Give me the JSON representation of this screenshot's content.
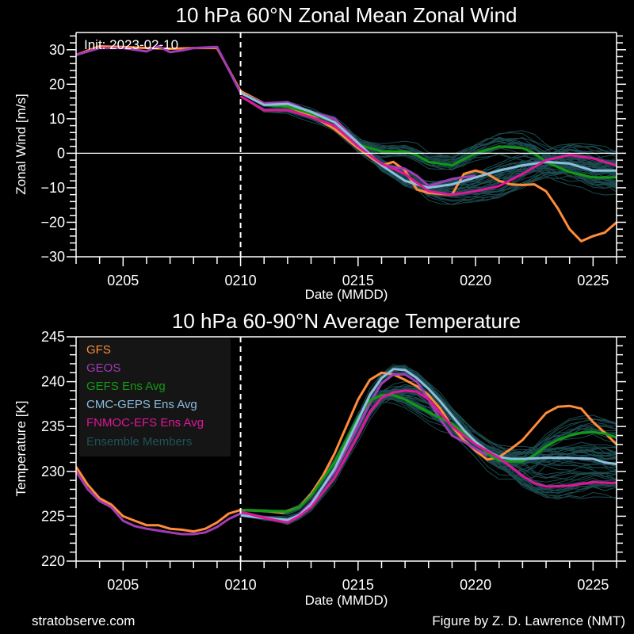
{
  "footer": {
    "left": "stratobserve.com",
    "right": "Figure by Z. D. Lawrence (NMT)"
  },
  "colors": {
    "GFS": "#ff8c3a",
    "GEOS": "#a23cb4",
    "GEFS": "#129b12",
    "CMC": "#8cbede",
    "FNMOC": "#e0169a",
    "Members": "#1c4a4e"
  },
  "chart_data": [
    {
      "type": "line",
      "title": "10 hPa  60°N   Zonal Mean Zonal Wind",
      "annotation": "Init: 2023-02-10",
      "xlabel": "Date (MMDD)",
      "ylabel": "Zonal  Wind   [m/s]",
      "xlim": [
        3,
        26
      ],
      "ylim": [
        -30,
        35
      ],
      "xticks": [
        5,
        10,
        15,
        20,
        25
      ],
      "xtick_labels": [
        "0205",
        "0210",
        "0215",
        "0220",
        "0225"
      ],
      "yticks": [
        30,
        20,
        10,
        0,
        -10,
        -20,
        -30
      ],
      "ytick_labels": [
        "30",
        "20",
        "10",
        "0",
        "−10",
        "−20",
        "−30"
      ],
      "init_day": 10,
      "zero_line": 0,
      "series": [
        {
          "name": "GFS",
          "x": [
            3,
            4,
            5,
            6,
            7,
            8,
            9,
            10,
            11,
            12,
            13,
            14,
            15,
            16,
            16.5,
            17,
            17.5,
            18,
            19,
            19.5,
            20,
            20.5,
            21,
            21.5,
            22,
            22.5,
            23,
            23.5,
            24,
            24.5,
            25,
            25.5,
            26
          ],
          "values": [
            28.5,
            31,
            30.8,
            30.5,
            30.3,
            30.5,
            30.5,
            18,
            14.5,
            13.5,
            11,
            7,
            1.5,
            -3.5,
            -2.5,
            -5,
            -10.5,
            -11.5,
            -12,
            -6,
            -5,
            -6,
            -8,
            -9,
            -9.2,
            -9,
            -11,
            -16,
            -22,
            -25.5,
            -24,
            -23,
            -20
          ]
        },
        {
          "name": "GEOS",
          "x": [
            3,
            4,
            5,
            6,
            6.5,
            7,
            7.5,
            8,
            9,
            10,
            11,
            12,
            13,
            14,
            15,
            16,
            17,
            17.5,
            18,
            19,
            20
          ],
          "values": [
            28.5,
            30.5,
            30.5,
            29.5,
            31,
            29.3,
            29.8,
            30.5,
            30.8,
            17.5,
            14.5,
            14.8,
            12,
            10,
            3,
            -3.5,
            -4.5,
            -6.5,
            -9.5,
            -7.5,
            -6.5
          ]
        },
        {
          "name": "GEFS Ens Avg",
          "x": [
            10,
            11,
            12,
            13,
            14,
            15,
            16,
            17,
            17.5,
            18,
            19,
            20,
            21,
            22,
            22.5,
            23,
            24,
            25,
            26
          ],
          "values": [
            17.5,
            14,
            13.5,
            11.5,
            9,
            2.5,
            0.5,
            0.5,
            -0.5,
            -2.5,
            -3.5,
            0,
            2,
            1.5,
            0,
            -2.5,
            -5.5,
            -7,
            -7
          ]
        },
        {
          "name": "CMC-GEPS Ens Avg",
          "x": [
            10,
            11,
            12,
            13,
            14,
            15,
            16,
            17,
            18,
            19,
            20,
            21,
            22,
            23,
            24,
            25,
            26
          ],
          "values": [
            17.5,
            14,
            14.3,
            12,
            9,
            3,
            -3.5,
            -8,
            -10,
            -9,
            -7,
            -5,
            -3.5,
            -2.5,
            -3,
            -5,
            -5
          ]
        },
        {
          "name": "FNMOC-EFS Ens Avg",
          "x": [
            10,
            11,
            12,
            13,
            14,
            15,
            16,
            17,
            18,
            19,
            20,
            21,
            22,
            23,
            24,
            25,
            26
          ],
          "values": [
            16.5,
            12.5,
            12.5,
            10.5,
            8,
            2,
            -3,
            -6,
            -11,
            -12,
            -11,
            -9.5,
            -6,
            -2,
            -0.5,
            -1.5,
            -3.5
          ]
        }
      ]
    },
    {
      "type": "line",
      "title": "10 hPa  60-90°N Average Temperature",
      "xlabel": "Date (MMDD)",
      "ylabel": "Temperature  [K]",
      "xlim": [
        3,
        26
      ],
      "ylim": [
        220,
        245
      ],
      "xticks": [
        5,
        10,
        15,
        20,
        25
      ],
      "xtick_labels": [
        "0205",
        "0210",
        "0215",
        "0220",
        "0225"
      ],
      "yticks": [
        245,
        240,
        235,
        230,
        225,
        220
      ],
      "ytick_labels": [
        "245",
        "240",
        "235",
        "230",
        "225",
        "220"
      ],
      "init_day": 10,
      "legend": {
        "position": "top-left",
        "entries": [
          "GFS",
          "GEOS",
          "GEFS Ens Avg",
          "CMC-GEPS Ens Avg",
          "FNMOC-EFS Ens Avg",
          "Ensemble Members"
        ]
      },
      "series": [
        {
          "name": "GFS",
          "x": [
            3,
            3.5,
            4,
            4.5,
            5,
            5.5,
            6,
            6.5,
            7,
            7.5,
            8,
            8.5,
            9,
            9.5,
            10,
            11,
            11.8,
            12.5,
            13,
            13.5,
            14,
            14.5,
            15,
            15.5,
            16,
            16.5,
            17,
            17.5,
            18,
            18.5,
            19,
            19.5,
            20,
            20.5,
            21,
            21.5,
            22,
            22.5,
            23,
            23.5,
            24,
            24.5,
            25,
            25.5,
            26
          ],
          "values": [
            230.5,
            228.5,
            227,
            226.3,
            225,
            224.5,
            224,
            224,
            223.6,
            223.5,
            223.3,
            223.6,
            224.3,
            225.3,
            225.7,
            225.6,
            225.4,
            226,
            227.5,
            229.5,
            232,
            235,
            238,
            240.2,
            241,
            240.8,
            240.2,
            239.5,
            238.5,
            237,
            235,
            233.5,
            232.3,
            231.3,
            231.6,
            232.5,
            233.5,
            235,
            236.5,
            237.2,
            237.3,
            237,
            235.5,
            234.3,
            233
          ]
        },
        {
          "name": "GEOS",
          "x": [
            3,
            3.5,
            4,
            4.5,
            5,
            5.5,
            6,
            6.5,
            7,
            7.5,
            8,
            8.5,
            9,
            9.5,
            10,
            10.5,
            11,
            12,
            12.5,
            13,
            14,
            15,
            15.5,
            16,
            16.5,
            17,
            17.5,
            18,
            18.5,
            19,
            19.5,
            20,
            20.5
          ],
          "values": [
            230,
            228,
            226.7,
            226,
            224.5,
            223.9,
            223.6,
            223.4,
            223.2,
            223,
            223,
            223.2,
            223.8,
            224.7,
            225.3,
            225.1,
            224.9,
            224.5,
            225.2,
            226.5,
            230,
            235,
            237.6,
            239.8,
            240.8,
            240.8,
            240,
            238,
            235.8,
            234,
            233.3,
            232.5,
            231.8
          ]
        },
        {
          "name": "GEFS Ens Avg",
          "x": [
            10,
            11,
            12,
            12.5,
            13,
            14,
            15,
            15.5,
            16,
            16.5,
            17,
            17.5,
            18,
            19,
            20,
            20.5,
            21,
            21.5,
            22,
            22.5,
            23,
            23.5,
            24,
            24.5,
            25,
            25.5,
            26
          ],
          "values": [
            225.7,
            225.6,
            225.5,
            226,
            227.3,
            231,
            236,
            237.9,
            238.5,
            238.5,
            238,
            237.3,
            236.6,
            235.3,
            233.3,
            232,
            231.2,
            231.1,
            231.1,
            231.8,
            232.8,
            233.5,
            234,
            234.3,
            234.4,
            234.2,
            233.8
          ]
        },
        {
          "name": "CMC-GEPS Ens Avg",
          "x": [
            10,
            11,
            12,
            12.5,
            13,
            14,
            15,
            15.5,
            16,
            16.5,
            17,
            17.5,
            18,
            18.5,
            19,
            19.5,
            20,
            20.5,
            21,
            21.5,
            22,
            23,
            24,
            25,
            25.5,
            26
          ],
          "values": [
            225.1,
            224.8,
            224.6,
            225.1,
            226.3,
            230.3,
            235.7,
            238.5,
            240.4,
            241.4,
            241.3,
            240.4,
            239.2,
            237.8,
            236.2,
            234.6,
            233.3,
            232.3,
            231.6,
            231.4,
            231.4,
            231.5,
            231.5,
            231.4,
            231,
            230.8
          ]
        },
        {
          "name": "FNMOC-EFS Ens Avg",
          "x": [
            10,
            11,
            12,
            12.5,
            13,
            14,
            15,
            15.5,
            16,
            16.5,
            17,
            17.5,
            18,
            18.5,
            19,
            20,
            21,
            21.5,
            22,
            22.5,
            23,
            24,
            25,
            26
          ],
          "values": [
            225.5,
            224.8,
            224.3,
            225,
            226,
            229.3,
            234,
            236.6,
            238.2,
            238.8,
            239,
            238.9,
            238,
            236.5,
            235,
            233,
            231.5,
            230.5,
            229.5,
            228.7,
            228.3,
            228.4,
            228.8,
            228.7
          ]
        }
      ]
    }
  ]
}
